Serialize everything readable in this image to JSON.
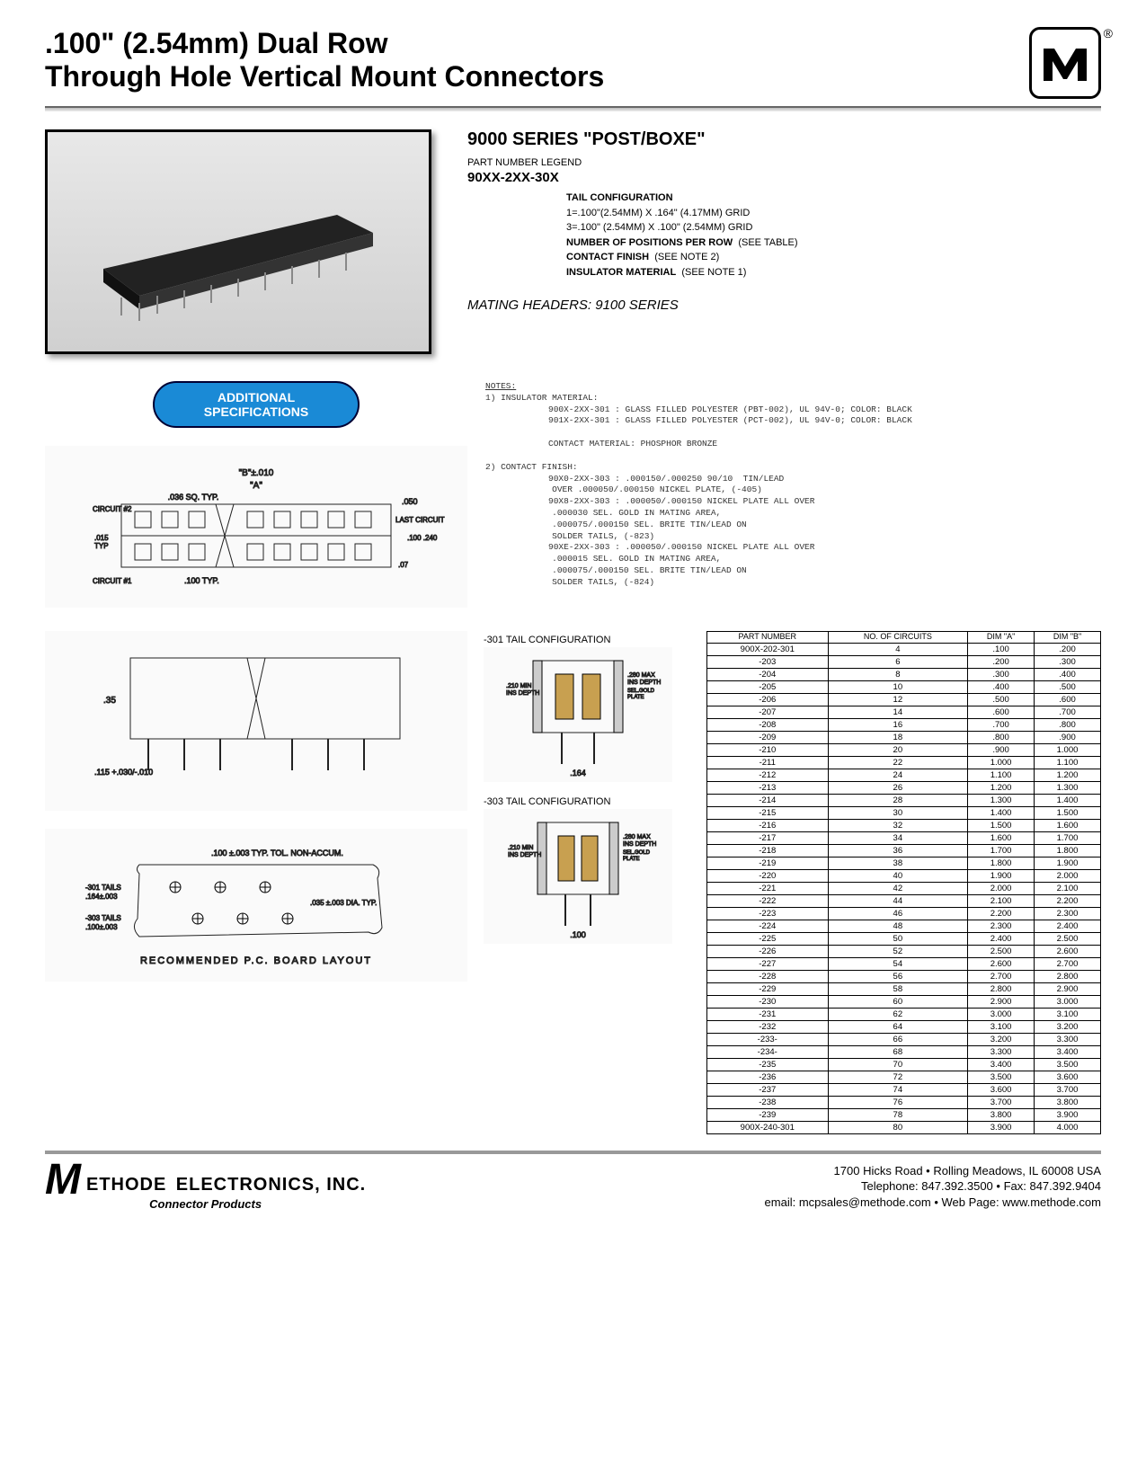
{
  "header": {
    "title_line1": ".100\" (2.54mm) Dual Row",
    "title_line2": "Through Hole Vertical Mount Connectors",
    "logo_letter": "M",
    "registered": "®"
  },
  "photo_alt": "[connector product photo]",
  "series": {
    "title": "9000 SERIES \"POST/BOXE\"",
    "legend_label": "PART NUMBER LEGEND",
    "pn": "90XX-2XX-30X",
    "items": [
      {
        "label": "TAIL CONFIGURATION",
        "desc": "1=.100\"(2.54MM) X .164\" (4.17MM) GRID\n3=.100\" (2.54MM) X .100\" (2.54MM) GRID"
      },
      {
        "label": "NUMBER OF POSITIONS PER ROW",
        "desc": "(SEE TABLE)"
      },
      {
        "label": "CONTACT FINISH",
        "desc": "(SEE NOTE 2)"
      },
      {
        "label": "INSULATOR MATERIAL",
        "desc": "(SEE NOTE 1)"
      }
    ],
    "mating": "MATING HEADERS:  9100 SERIES"
  },
  "pill": "ADDITIONAL\nSPECIFICATIONS",
  "notes": {
    "heading": "NOTES:",
    "n1_head": "1) INSULATOR MATERIAL:",
    "n1_a": "900X-2XX-301 : GLASS FILLED POLYESTER (PBT-002), UL 94V-0; COLOR:  BLACK",
    "n1_b": "901X-2XX-301 : GLASS FILLED POLYESTER (PCT-002), UL 94V-0; COLOR:  BLACK",
    "n1_c": "CONTACT MATERIAL: PHOSPHOR BRONZE",
    "n2_head": "2) CONTACT FINISH:",
    "n2_a": "90X0-2XX-303 : .000150/.000250 90/10  TIN/LEAD\n             OVER .000050/.000150 NICKEL PLATE, (-405)",
    "n2_b": "90X8-2XX-303 : .000050/.000150 NICKEL PLATE ALL OVER\n             .000030 SEL. GOLD IN MATING AREA,\n             .000075/.000150 SEL. BRITE TIN/LEAD ON\n             SOLDER TAILS, (-823)",
    "n2_c": "90XE-2XX-303 : .000050/.000150 NICKEL PLATE ALL OVER\n             .000015 SEL. GOLD IN MATING AREA,\n             .000075/.000150 SEL. BRITE TIN/LEAD ON\n             SOLDER TAILS, (-824)"
  },
  "diagrams": {
    "top_text": "\"B\"±.010  /  \"A\"  /  .036 SQ. TYP.  /  .050  /  CIRCUIT #2  /  LAST CIRCUIT  /  .100 .240  /  .015 TYP  /  .07  /  .100 TYP.  /  CIRCUIT #1",
    "side_text": ".35  /  .115 +.030/-.010",
    "tail301_label": "-301 TAIL CONFIGURATION",
    "tail301_text": ".210 MIN INS DEPTH  /  SEL. GOLD PLATE  /  .280 MAX INS DEPTH  /  .164",
    "tail303_label": "-303 TAIL CONFIGURATION",
    "tail303_text": ".210 MIN INS DEPTH  /  SEL. GOLD PLATE  /  .280 MAX INS DEPTH  /  .100",
    "pcb_text": ".100 ±.003 TYP. TOL. NON-ACCUM.  /  -301 TAILS .164±.003  /  .035 ±.003 DIA. TYP.  /  -303 TAILS .100±.003  /  RECOMMENDED P.C. BOARD LAYOUT"
  },
  "table": {
    "headers": [
      "PART NUMBER",
      "NO. OF CIRCUITS",
      "DIM \"A\"",
      "DIM \"B\""
    ],
    "rows": [
      [
        "900X-202-301",
        "4",
        ".100",
        ".200"
      ],
      [
        "-203",
        "6",
        ".200",
        ".300"
      ],
      [
        "-204",
        "8",
        ".300",
        ".400"
      ],
      [
        "-205",
        "10",
        ".400",
        ".500"
      ],
      [
        "-206",
        "12",
        ".500",
        ".600"
      ],
      [
        "-207",
        "14",
        ".600",
        ".700"
      ],
      [
        "-208",
        "16",
        ".700",
        ".800"
      ],
      [
        "-209",
        "18",
        ".800",
        ".900"
      ],
      [
        "-210",
        "20",
        ".900",
        "1.000"
      ],
      [
        "-211",
        "22",
        "1.000",
        "1.100"
      ],
      [
        "-212",
        "24",
        "1.100",
        "1.200"
      ],
      [
        "-213",
        "26",
        "1.200",
        "1.300"
      ],
      [
        "-214",
        "28",
        "1.300",
        "1.400"
      ],
      [
        "-215",
        "30",
        "1.400",
        "1.500"
      ],
      [
        "-216",
        "32",
        "1.500",
        "1.600"
      ],
      [
        "-217",
        "34",
        "1.600",
        "1.700"
      ],
      [
        "-218",
        "36",
        "1.700",
        "1.800"
      ],
      [
        "-219",
        "38",
        "1.800",
        "1.900"
      ],
      [
        "-220",
        "40",
        "1.900",
        "2.000"
      ],
      [
        "-221",
        "42",
        "2.000",
        "2.100"
      ],
      [
        "-222",
        "44",
        "2.100",
        "2.200"
      ],
      [
        "-223",
        "46",
        "2.200",
        "2.300"
      ],
      [
        "-224",
        "48",
        "2.300",
        "2.400"
      ],
      [
        "-225",
        "50",
        "2.400",
        "2.500"
      ],
      [
        "-226",
        "52",
        "2.500",
        "2.600"
      ],
      [
        "-227",
        "54",
        "2.600",
        "2.700"
      ],
      [
        "-228",
        "56",
        "2.700",
        "2.800"
      ],
      [
        "-229",
        "58",
        "2.800",
        "2.900"
      ],
      [
        "-230",
        "60",
        "2.900",
        "3.000"
      ],
      [
        "-231",
        "62",
        "3.000",
        "3.100"
      ],
      [
        "-232",
        "64",
        "3.100",
        "3.200"
      ],
      [
        "-233-",
        "66",
        "3.200",
        "3.300"
      ],
      [
        "-234-",
        "68",
        "3.300",
        "3.400"
      ],
      [
        "-235",
        "70",
        "3.400",
        "3.500"
      ],
      [
        "-236",
        "72",
        "3.500",
        "3.600"
      ],
      [
        "-237",
        "74",
        "3.600",
        "3.700"
      ],
      [
        "-238",
        "76",
        "3.700",
        "3.800"
      ],
      [
        "-239",
        "78",
        "3.800",
        "3.900"
      ],
      [
        "900X-240-301",
        "80",
        "3.900",
        "4.000"
      ]
    ]
  },
  "footer": {
    "company": "ETHODE",
    "company2": "ELECTRONICS, INC.",
    "sub": "Connector Products",
    "addr": "1700 Hicks Road  •  Rolling Meadows, IL  60008  USA",
    "phone": "Telephone: 847.392.3500  •  Fax: 847.392.9404",
    "email": "email:  mcpsales@methode.com  •  Web Page: www.methode.com"
  },
  "colors": {
    "pill_bg": "#1a8ad6",
    "pill_border": "#002a55"
  }
}
